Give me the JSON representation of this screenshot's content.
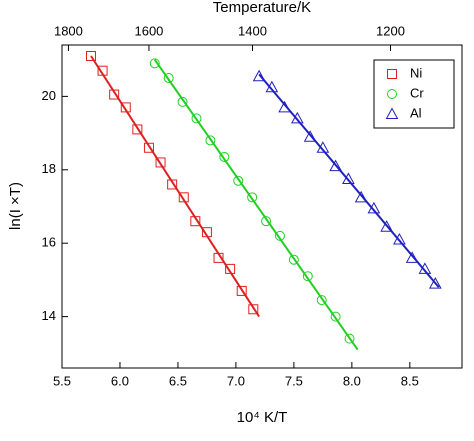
{
  "chart_data": {
    "type": "scatter",
    "x_label": "10⁴ K/T",
    "y_label": "ln(I ×T)",
    "x2_label": "Temperature/K",
    "xlim": [
      5.5,
      8.95
    ],
    "ylim": [
      12.6,
      21.4
    ],
    "xticks": [
      5.5,
      {
        "value": 6,
        "label": "6.0"
      },
      6.5,
      {
        "value": 7,
        "label": "7.0"
      },
      7.5,
      {
        "value": 8,
        "label": "8.0"
      },
      8.5
    ],
    "yticks": [
      14,
      16,
      18,
      20
    ],
    "x2ticks": [
      1800,
      1600,
      1400,
      1200
    ],
    "legend": "top-right",
    "series": [
      {
        "name": "Ni",
        "color": "#e02020",
        "marker": "square",
        "x": [
          5.75,
          5.85,
          5.95,
          6.05,
          6.15,
          6.25,
          6.35,
          6.45,
          6.55,
          6.65,
          6.75,
          6.85,
          6.95,
          7.05,
          7.15
        ],
        "y": [
          21.1,
          20.7,
          20.05,
          19.7,
          19.1,
          18.6,
          18.2,
          17.6,
          17.25,
          16.6,
          16.3,
          15.6,
          15.3,
          14.7,
          14.2
        ],
        "fit_x": [
          5.75,
          7.2
        ],
        "fit_y": [
          21.1,
          14.0
        ]
      },
      {
        "name": "Cr",
        "color": "#20d020",
        "marker": "circle",
        "x": [
          6.3,
          6.42,
          6.54,
          6.66,
          6.78,
          6.9,
          7.02,
          7.14,
          7.26,
          7.38,
          7.5,
          7.62,
          7.74,
          7.86,
          7.98
        ],
        "y": [
          20.9,
          20.5,
          19.85,
          19.4,
          18.8,
          18.35,
          17.7,
          17.25,
          16.6,
          16.2,
          15.55,
          15.1,
          14.45,
          14.0,
          13.4
        ],
        "fit_x": [
          6.3,
          8.05
        ],
        "fit_y": [
          21.0,
          13.1
        ]
      },
      {
        "name": "Al",
        "color": "#2020c0",
        "marker": "triangle",
        "x": [
          7.2,
          7.31,
          7.42,
          7.53,
          7.64,
          7.75,
          7.86,
          7.97,
          8.08,
          8.19,
          8.3,
          8.41,
          8.52,
          8.63,
          8.72
        ],
        "y": [
          20.55,
          20.25,
          19.7,
          19.4,
          18.9,
          18.6,
          18.1,
          17.75,
          17.25,
          16.95,
          16.45,
          16.1,
          15.6,
          15.3,
          14.9
        ],
        "fit_x": [
          7.2,
          8.75
        ],
        "fit_y": [
          20.6,
          14.8
        ]
      }
    ]
  }
}
